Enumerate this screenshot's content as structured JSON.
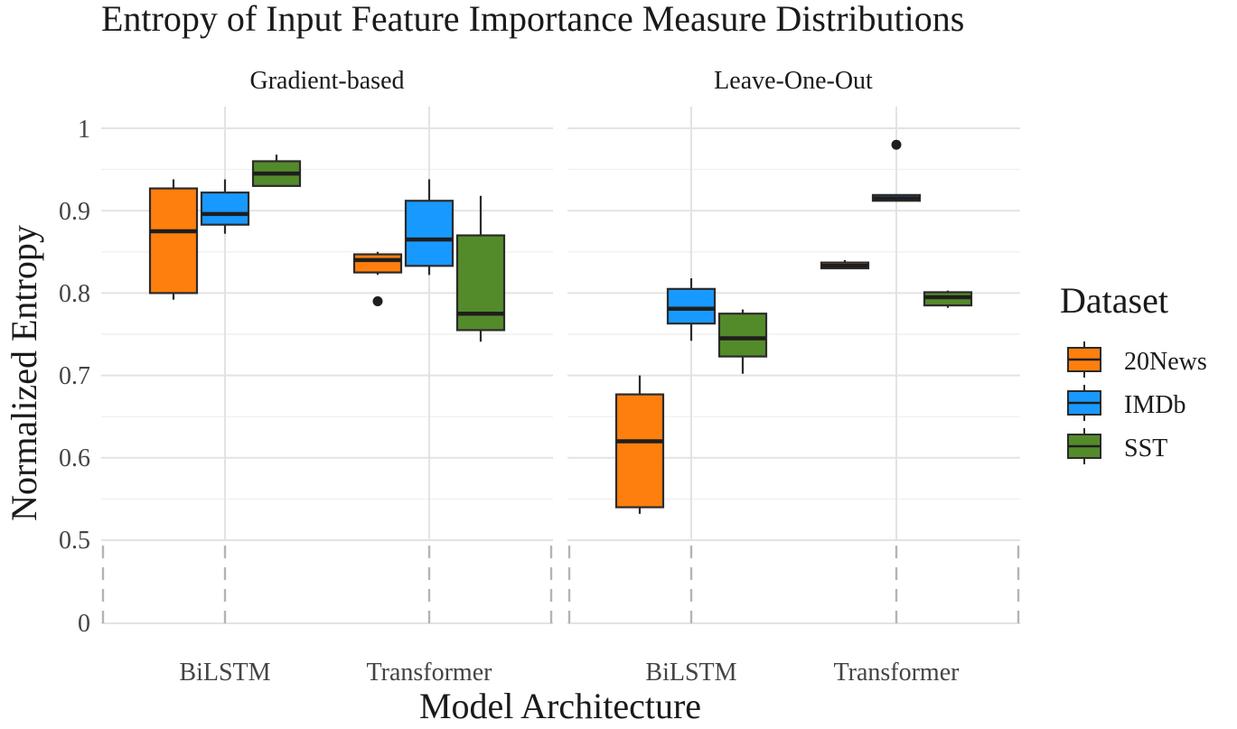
{
  "chart_data": {
    "type": "box",
    "title": "Entropy of Input Feature Importance Measure Distributions",
    "xlabel": "Model Architecture",
    "ylabel": "Normalized Entropy",
    "y_ticks": [
      "0",
      "0.5",
      "0.6",
      "0.7",
      "0.8",
      "0.9",
      "1"
    ],
    "y_tick_values": [
      0,
      0.5,
      0.6,
      0.7,
      0.8,
      0.9,
      1.0
    ],
    "y_break": {
      "from": 0,
      "to": 0.5
    },
    "ylim": [
      0.5,
      1.02
    ],
    "categories": [
      "BiLSTM",
      "Transformer"
    ],
    "legend": {
      "title": "Dataset",
      "position": "right",
      "entries": [
        {
          "name": "20News",
          "color": "#FF7F0E"
        },
        {
          "name": "IMDb",
          "color": "#1899FF"
        },
        {
          "name": "SST",
          "color": "#548B2A"
        }
      ]
    },
    "panels": [
      {
        "name": "Gradient-based",
        "boxes": [
          {
            "category": "BiLSTM",
            "series": "20News",
            "min": 0.792,
            "q1": 0.8,
            "median": 0.875,
            "q3": 0.927,
            "max": 0.938,
            "outliers": []
          },
          {
            "category": "BiLSTM",
            "series": "IMDb",
            "min": 0.872,
            "q1": 0.883,
            "median": 0.896,
            "q3": 0.922,
            "max": 0.938,
            "outliers": []
          },
          {
            "category": "BiLSTM",
            "series": "SST",
            "min": 0.93,
            "q1": 0.93,
            "median": 0.945,
            "q3": 0.96,
            "max": 0.968,
            "outliers": []
          },
          {
            "category": "Transformer",
            "series": "20News",
            "min": 0.822,
            "q1": 0.825,
            "median": 0.84,
            "q3": 0.847,
            "max": 0.85,
            "outliers": [
              0.79
            ]
          },
          {
            "category": "Transformer",
            "series": "IMDb",
            "min": 0.822,
            "q1": 0.833,
            "median": 0.865,
            "q3": 0.912,
            "max": 0.938,
            "outliers": []
          },
          {
            "category": "Transformer",
            "series": "SST",
            "min": 0.741,
            "q1": 0.755,
            "median": 0.775,
            "q3": 0.87,
            "max": 0.918,
            "outliers": []
          }
        ]
      },
      {
        "name": "Leave-One-Out",
        "boxes": [
          {
            "category": "BiLSTM",
            "series": "20News",
            "min": 0.532,
            "q1": 0.54,
            "median": 0.62,
            "q3": 0.677,
            "max": 0.7,
            "outliers": []
          },
          {
            "category": "BiLSTM",
            "series": "IMDb",
            "min": 0.742,
            "q1": 0.763,
            "median": 0.781,
            "q3": 0.805,
            "max": 0.818,
            "outliers": []
          },
          {
            "category": "BiLSTM",
            "series": "SST",
            "min": 0.702,
            "q1": 0.723,
            "median": 0.745,
            "q3": 0.775,
            "max": 0.78,
            "outliers": []
          },
          {
            "category": "Transformer",
            "series": "20News",
            "min": 0.83,
            "q1": 0.83,
            "median": 0.833,
            "q3": 0.837,
            "max": 0.84,
            "outliers": []
          },
          {
            "category": "Transformer",
            "series": "IMDb",
            "min": 0.912,
            "q1": 0.912,
            "median": 0.915,
            "q3": 0.919,
            "max": 0.92,
            "outliers": [
              0.98
            ]
          },
          {
            "category": "Transformer",
            "series": "SST",
            "min": 0.782,
            "q1": 0.785,
            "median": 0.795,
            "q3": 0.801,
            "max": 0.803,
            "outliers": []
          }
        ]
      }
    ]
  }
}
